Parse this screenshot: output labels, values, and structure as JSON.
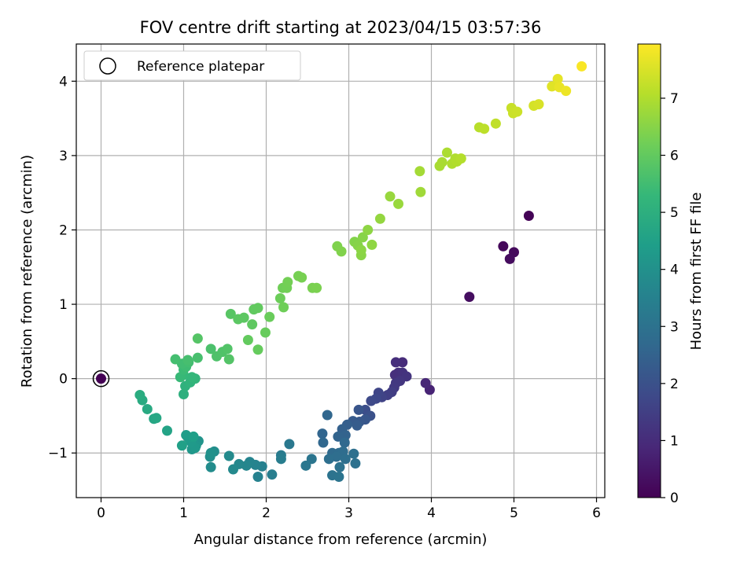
{
  "chart_data": {
    "type": "scatter",
    "title": "FOV centre drift starting at 2023/04/15 03:57:36",
    "xlabel": "Angular distance from reference (arcmin)",
    "ylabel": "Rotation from reference (arcmin)",
    "xlim": [
      -0.3,
      6.1
    ],
    "ylim": [
      -1.6,
      4.5
    ],
    "xticks": [
      0,
      1,
      2,
      3,
      4,
      5,
      6
    ],
    "yticks": [
      -1,
      0,
      1,
      2,
      3,
      4
    ],
    "grid": true,
    "legend": {
      "placement": "top-left",
      "entries": [
        "Reference platepar"
      ]
    },
    "reference_point": {
      "x": 0,
      "y": 0
    },
    "colorbar": {
      "label": "Hours from first FF file",
      "range": [
        0,
        7.95
      ],
      "ticks": [
        0,
        1,
        2,
        3,
        4,
        5,
        6,
        7
      ],
      "colormap": "viridis",
      "colors": [
        "#440154",
        "#482878",
        "#3e4989",
        "#31688e",
        "#26828e",
        "#1f9e89",
        "#35b779",
        "#6ece58",
        "#b5de2b",
        "#fde725"
      ]
    },
    "points": [
      {
        "x": 0,
        "y": 0,
        "c": 0
      },
      {
        "x": 5.18,
        "y": 2.19,
        "c": 0.05
      },
      {
        "x": 4.87,
        "y": 1.78,
        "c": 0.15
      },
      {
        "x": 5.0,
        "y": 1.7,
        "c": 0.2
      },
      {
        "x": 4.95,
        "y": 1.61,
        "c": 0.25
      },
      {
        "x": 4.46,
        "y": 1.1,
        "c": 0.3
      },
      {
        "x": 3.98,
        "y": -0.15,
        "c": 0.8
      },
      {
        "x": 3.93,
        "y": -0.06,
        "c": 0.85
      },
      {
        "x": 3.65,
        "y": 0.22,
        "c": 1.0
      },
      {
        "x": 3.57,
        "y": 0.22,
        "c": 1.05
      },
      {
        "x": 3.56,
        "y": 0.05,
        "c": 1.1
      },
      {
        "x": 3.6,
        "y": 0.08,
        "c": 1.1
      },
      {
        "x": 3.65,
        "y": 0.08,
        "c": 1.15
      },
      {
        "x": 3.7,
        "y": 0.03,
        "c": 1.2
      },
      {
        "x": 3.62,
        "y": -0.03,
        "c": 1.25
      },
      {
        "x": 3.57,
        "y": -0.06,
        "c": 1.3
      },
      {
        "x": 3.55,
        "y": -0.12,
        "c": 1.35
      },
      {
        "x": 3.52,
        "y": -0.18,
        "c": 1.45
      },
      {
        "x": 3.47,
        "y": -0.22,
        "c": 1.5
      },
      {
        "x": 3.4,
        "y": -0.25,
        "c": 1.6
      },
      {
        "x": 3.36,
        "y": -0.19,
        "c": 1.65
      },
      {
        "x": 3.33,
        "y": -0.27,
        "c": 1.75
      },
      {
        "x": 3.27,
        "y": -0.3,
        "c": 1.8
      },
      {
        "x": 3.2,
        "y": -0.42,
        "c": 1.9
      },
      {
        "x": 3.26,
        "y": -0.5,
        "c": 2.0
      },
      {
        "x": 3.12,
        "y": -0.42,
        "c": 2.1
      },
      {
        "x": 3.2,
        "y": -0.55,
        "c": 2.15
      },
      {
        "x": 3.13,
        "y": -0.58,
        "c": 2.2
      },
      {
        "x": 3.05,
        "y": -0.57,
        "c": 2.25
      },
      {
        "x": 3.1,
        "y": -0.63,
        "c": 2.3
      },
      {
        "x": 2.98,
        "y": -0.62,
        "c": 2.4
      },
      {
        "x": 2.92,
        "y": -0.68,
        "c": 2.45
      },
      {
        "x": 2.96,
        "y": -0.76,
        "c": 2.5
      },
      {
        "x": 2.87,
        "y": -0.78,
        "c": 2.55
      },
      {
        "x": 2.68,
        "y": -0.74,
        "c": 2.6
      },
      {
        "x": 2.74,
        "y": -0.49,
        "c": 2.62
      },
      {
        "x": 2.69,
        "y": -0.86,
        "c": 2.65
      },
      {
        "x": 2.95,
        "y": -0.86,
        "c": 2.7
      },
      {
        "x": 2.8,
        "y": -1.0,
        "c": 2.75
      },
      {
        "x": 2.88,
        "y": -1.0,
        "c": 2.8
      },
      {
        "x": 2.93,
        "y": -0.98,
        "c": 2.82
      },
      {
        "x": 2.85,
        "y": -1.05,
        "c": 2.85
      },
      {
        "x": 2.96,
        "y": -1.08,
        "c": 2.88
      },
      {
        "x": 2.76,
        "y": -1.08,
        "c": 2.9
      },
      {
        "x": 3.06,
        "y": -1.01,
        "c": 2.92
      },
      {
        "x": 3.08,
        "y": -1.14,
        "c": 2.95
      },
      {
        "x": 2.89,
        "y": -1.19,
        "c": 3.0
      },
      {
        "x": 2.8,
        "y": -1.3,
        "c": 3.02
      },
      {
        "x": 2.88,
        "y": -1.32,
        "c": 3.05
      },
      {
        "x": 2.55,
        "y": -1.08,
        "c": 3.1
      },
      {
        "x": 2.48,
        "y": -1.17,
        "c": 3.15
      },
      {
        "x": 2.28,
        "y": -0.88,
        "c": 3.2
      },
      {
        "x": 2.18,
        "y": -1.03,
        "c": 3.3
      },
      {
        "x": 2.18,
        "y": -1.08,
        "c": 3.35
      },
      {
        "x": 2.07,
        "y": -1.29,
        "c": 3.4
      },
      {
        "x": 1.95,
        "y": -1.18,
        "c": 3.45
      },
      {
        "x": 1.9,
        "y": -1.32,
        "c": 3.5
      },
      {
        "x": 1.87,
        "y": -1.16,
        "c": 3.55
      },
      {
        "x": 1.8,
        "y": -1.12,
        "c": 3.6
      },
      {
        "x": 1.76,
        "y": -1.17,
        "c": 3.65
      },
      {
        "x": 1.67,
        "y": -1.15,
        "c": 3.7
      },
      {
        "x": 1.6,
        "y": -1.22,
        "c": 3.75
      },
      {
        "x": 1.55,
        "y": -1.04,
        "c": 3.8
      },
      {
        "x": 1.33,
        "y": -1.19,
        "c": 3.85
      },
      {
        "x": 1.37,
        "y": -0.98,
        "c": 3.9
      },
      {
        "x": 1.32,
        "y": -1.05,
        "c": 3.95
      },
      {
        "x": 1.33,
        "y": -1.0,
        "c": 4.0
      },
      {
        "x": 1.18,
        "y": -0.84,
        "c": 4.1
      },
      {
        "x": 1.15,
        "y": -0.9,
        "c": 4.15
      },
      {
        "x": 1.1,
        "y": -0.95,
        "c": 4.2
      },
      {
        "x": 1.14,
        "y": -0.93,
        "c": 4.25
      },
      {
        "x": 1.09,
        "y": -0.85,
        "c": 4.3
      },
      {
        "x": 1.06,
        "y": -0.8,
        "c": 4.35
      },
      {
        "x": 1.03,
        "y": -0.76,
        "c": 4.4
      },
      {
        "x": 1.12,
        "y": -0.78,
        "c": 4.45
      },
      {
        "x": 0.98,
        "y": -0.9,
        "c": 4.5
      },
      {
        "x": 0.8,
        "y": -0.7,
        "c": 4.6
      },
      {
        "x": 0.64,
        "y": -0.54,
        "c": 4.7
      },
      {
        "x": 0.67,
        "y": -0.53,
        "c": 4.72
      },
      {
        "x": 0.56,
        "y": -0.41,
        "c": 4.8
      },
      {
        "x": 0.5,
        "y": -0.29,
        "c": 4.85
      },
      {
        "x": 0.47,
        "y": -0.22,
        "c": 4.9
      },
      {
        "x": 1.0,
        "y": -0.21,
        "c": 5.0
      },
      {
        "x": 1.02,
        "y": -0.1,
        "c": 5.1
      },
      {
        "x": 1.08,
        "y": -0.05,
        "c": 5.15
      },
      {
        "x": 1.14,
        "y": 0.0,
        "c": 5.2
      },
      {
        "x": 1.1,
        "y": 0.02,
        "c": 5.25
      },
      {
        "x": 1.0,
        "y": 0.05,
        "c": 5.3
      },
      {
        "x": 0.96,
        "y": 0.02,
        "c": 5.35
      },
      {
        "x": 1.0,
        "y": 0.12,
        "c": 5.4
      },
      {
        "x": 1.03,
        "y": 0.16,
        "c": 5.45
      },
      {
        "x": 0.98,
        "y": 0.2,
        "c": 5.5
      },
      {
        "x": 1.06,
        "y": 0.22,
        "c": 5.52
      },
      {
        "x": 0.9,
        "y": 0.26,
        "c": 5.55
      },
      {
        "x": 1.05,
        "y": 0.25,
        "c": 5.58
      },
      {
        "x": 1.17,
        "y": 0.28,
        "c": 5.6
      },
      {
        "x": 1.33,
        "y": 0.4,
        "c": 5.65
      },
      {
        "x": 1.4,
        "y": 0.3,
        "c": 5.7
      },
      {
        "x": 1.47,
        "y": 0.36,
        "c": 5.72
      },
      {
        "x": 1.53,
        "y": 0.4,
        "c": 5.75
      },
      {
        "x": 1.55,
        "y": 0.26,
        "c": 5.78
      },
      {
        "x": 1.17,
        "y": 0.54,
        "c": 5.8
      },
      {
        "x": 1.57,
        "y": 0.87,
        "c": 5.85
      },
      {
        "x": 1.66,
        "y": 0.8,
        "c": 5.9
      },
      {
        "x": 1.73,
        "y": 0.82,
        "c": 5.92
      },
      {
        "x": 1.83,
        "y": 0.73,
        "c": 5.95
      },
      {
        "x": 1.85,
        "y": 0.93,
        "c": 5.98
      },
      {
        "x": 1.9,
        "y": 0.95,
        "c": 6.0
      },
      {
        "x": 1.78,
        "y": 0.52,
        "c": 6.02
      },
      {
        "x": 1.9,
        "y": 0.39,
        "c": 6.05
      },
      {
        "x": 1.99,
        "y": 0.62,
        "c": 6.08
      },
      {
        "x": 2.04,
        "y": 0.83,
        "c": 6.1
      },
      {
        "x": 2.17,
        "y": 1.08,
        "c": 6.15
      },
      {
        "x": 2.21,
        "y": 0.96,
        "c": 6.18
      },
      {
        "x": 2.2,
        "y": 1.22,
        "c": 6.2
      },
      {
        "x": 2.25,
        "y": 1.22,
        "c": 6.22
      },
      {
        "x": 2.26,
        "y": 1.3,
        "c": 6.25
      },
      {
        "x": 2.39,
        "y": 1.38,
        "c": 6.28
      },
      {
        "x": 2.43,
        "y": 1.36,
        "c": 6.3
      },
      {
        "x": 2.56,
        "y": 1.22,
        "c": 6.32
      },
      {
        "x": 2.61,
        "y": 1.22,
        "c": 6.35
      },
      {
        "x": 2.86,
        "y": 1.78,
        "c": 6.4
      },
      {
        "x": 2.91,
        "y": 1.71,
        "c": 6.42
      },
      {
        "x": 3.07,
        "y": 1.84,
        "c": 6.45
      },
      {
        "x": 3.11,
        "y": 1.79,
        "c": 6.48
      },
      {
        "x": 3.17,
        "y": 1.9,
        "c": 6.5
      },
      {
        "x": 3.15,
        "y": 1.66,
        "c": 6.52
      },
      {
        "x": 3.15,
        "y": 1.73,
        "c": 6.55
      },
      {
        "x": 3.23,
        "y": 2.0,
        "c": 6.58
      },
      {
        "x": 3.28,
        "y": 1.8,
        "c": 6.6
      },
      {
        "x": 3.38,
        "y": 2.15,
        "c": 6.65
      },
      {
        "x": 3.5,
        "y": 2.45,
        "c": 6.7
      },
      {
        "x": 3.6,
        "y": 2.35,
        "c": 6.72
      },
      {
        "x": 3.87,
        "y": 2.51,
        "c": 6.8
      },
      {
        "x": 3.86,
        "y": 2.79,
        "c": 6.85
      },
      {
        "x": 4.1,
        "y": 2.86,
        "c": 6.9
      },
      {
        "x": 4.13,
        "y": 2.91,
        "c": 6.92
      },
      {
        "x": 4.19,
        "y": 3.04,
        "c": 6.95
      },
      {
        "x": 4.25,
        "y": 2.89,
        "c": 6.98
      },
      {
        "x": 4.29,
        "y": 2.96,
        "c": 7.0
      },
      {
        "x": 4.31,
        "y": 2.92,
        "c": 7.02
      },
      {
        "x": 4.36,
        "y": 2.96,
        "c": 7.05
      },
      {
        "x": 4.58,
        "y": 3.38,
        "c": 7.1
      },
      {
        "x": 4.64,
        "y": 3.36,
        "c": 7.15
      },
      {
        "x": 4.78,
        "y": 3.43,
        "c": 7.2
      },
      {
        "x": 4.97,
        "y": 3.64,
        "c": 7.3
      },
      {
        "x": 4.99,
        "y": 3.57,
        "c": 7.32
      },
      {
        "x": 5.04,
        "y": 3.59,
        "c": 7.35
      },
      {
        "x": 5.24,
        "y": 3.67,
        "c": 7.45
      },
      {
        "x": 5.3,
        "y": 3.69,
        "c": 7.5
      },
      {
        "x": 5.46,
        "y": 3.93,
        "c": 7.6
      },
      {
        "x": 5.53,
        "y": 4.03,
        "c": 7.65
      },
      {
        "x": 5.55,
        "y": 3.92,
        "c": 7.7
      },
      {
        "x": 5.63,
        "y": 3.87,
        "c": 7.75
      },
      {
        "x": 5.82,
        "y": 4.2,
        "c": 7.9
      }
    ]
  }
}
